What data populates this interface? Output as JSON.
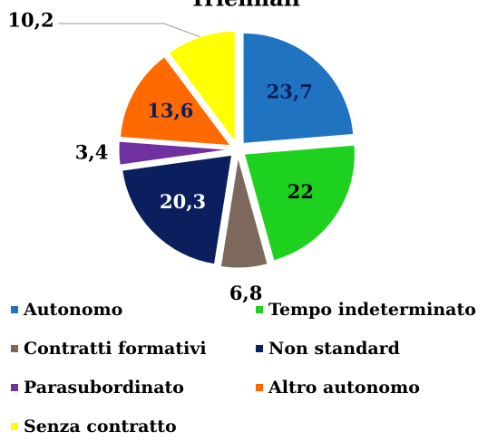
{
  "chart_data": {
    "type": "pie",
    "title": "Triennali",
    "categories": [
      "Autonomo",
      "Tempo indeterminato",
      "Contratti formativi",
      "Non standard",
      "Parasubordinato",
      "Altro autonomo",
      "Senza contratto"
    ],
    "values": [
      23.7,
      22,
      6.8,
      20.3,
      3.4,
      13.6,
      10.2
    ],
    "value_labels": [
      "23,7",
      "22",
      "6,8",
      "20,3",
      "3,4",
      "13,6",
      "10,2"
    ],
    "colors": [
      "#1f73c0",
      "#1fd11f",
      "#7c695c",
      "#0b1f5e",
      "#7030a0",
      "#ff6a00",
      "#ffff00"
    ]
  }
}
